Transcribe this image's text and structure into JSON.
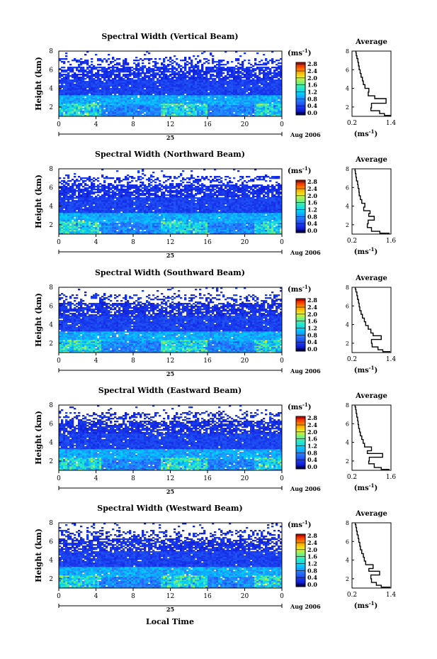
{
  "date_label": "Aug 2006",
  "day_label": "25",
  "xlabel": "Local Time",
  "heatmap_ylabel": "Height (km)",
  "unit_label": "(ms",
  "unit_exp": "-1",
  "avg_title": "Average",
  "chart_data": [
    {
      "type": "heatmap",
      "title": "Spectral Width (Vertical Beam)",
      "x_ticks": [
        "0",
        "4",
        "8",
        "12",
        "16",
        "20",
        "0"
      ],
      "y_ticks": [
        "2",
        "4",
        "6",
        "8"
      ],
      "colorbar_ticks": [
        "0.0",
        "0.4",
        "0.8",
        "1.2",
        "1.6",
        "2.0",
        "2.4",
        "2.8"
      ],
      "colorbar_range": [
        0,
        2.8
      ],
      "xlim": [
        0,
        24
      ],
      "ylim": [
        1,
        8
      ],
      "avg_profile": {
        "xlim": [
          0.2,
          1.4
        ],
        "x_ticks": [
          "0.2",
          "1.4"
        ],
        "y_ticks": [
          "2",
          "4",
          "6",
          "8"
        ],
        "ylim": [
          1,
          8
        ],
        "x": [
          1.4,
          1.2,
          1.05,
          0.78,
          0.8,
          1.25,
          0.9,
          0.7,
          0.72,
          0.6,
          0.55,
          0.52,
          0.48,
          0.45,
          0.42,
          0.4,
          0.38,
          0.35,
          0.33,
          0.32
        ],
        "y": [
          1.1,
          1.3,
          1.6,
          1.9,
          2.4,
          2.9,
          3.2,
          3.6,
          4.0,
          4.4,
          4.8,
          5.2,
          5.6,
          6.0,
          6.4,
          6.8,
          7.2,
          7.5,
          7.8,
          8.0
        ]
      }
    },
    {
      "type": "heatmap",
      "title": "Spectral Width (Northward Beam)",
      "x_ticks": [
        "0",
        "4",
        "8",
        "12",
        "16",
        "20",
        "0"
      ],
      "y_ticks": [
        "2",
        "4",
        "6",
        "8"
      ],
      "colorbar_ticks": [
        "0.0",
        "0.4",
        "0.8",
        "1.2",
        "1.6",
        "2.0",
        "2.4",
        "2.8"
      ],
      "colorbar_range": [
        0,
        2.8
      ],
      "xlim": [
        0,
        24
      ],
      "ylim": [
        1,
        8
      ],
      "avg_profile": {
        "xlim": [
          0.2,
          1.6
        ],
        "x_ticks": [
          "0.2",
          "1.6"
        ],
        "y_ticks": [
          "2",
          "4",
          "6",
          "8"
        ],
        "ylim": [
          1,
          8
        ],
        "x": [
          1.55,
          1.2,
          0.9,
          0.75,
          0.78,
          1.0,
          0.8,
          0.85,
          0.62,
          0.66,
          0.55,
          0.5,
          0.46,
          0.45,
          0.42,
          0.4,
          0.36,
          0.34,
          0.32,
          0.31
        ],
        "y": [
          1.1,
          1.3,
          1.7,
          2.1,
          2.5,
          2.9,
          3.2,
          3.5,
          3.9,
          4.3,
          4.7,
          5.1,
          5.5,
          5.9,
          6.3,
          6.7,
          7.1,
          7.5,
          7.8,
          8.0
        ]
      }
    },
    {
      "type": "heatmap",
      "title": "Spectral Width (Southward Beam)",
      "x_ticks": [
        "0",
        "4",
        "8",
        "12",
        "16",
        "20",
        "0"
      ],
      "y_ticks": [
        "2",
        "4",
        "6",
        "8"
      ],
      "colorbar_ticks": [
        "0.0",
        "0.4",
        "0.8",
        "1.2",
        "1.6",
        "2.0",
        "2.4",
        "2.8"
      ],
      "colorbar_range": [
        0,
        2.8
      ],
      "xlim": [
        0,
        24
      ],
      "ylim": [
        1,
        8
      ],
      "avg_profile": {
        "xlim": [
          0.2,
          1.4
        ],
        "x_ticks": [
          "0.2",
          "1.4"
        ],
        "y_ticks": [
          "2",
          "4",
          "6",
          "8"
        ],
        "ylim": [
          1,
          8
        ],
        "x": [
          1.38,
          1.15,
          1.0,
          0.82,
          0.8,
          1.1,
          0.85,
          0.78,
          0.7,
          0.62,
          0.58,
          0.52,
          0.48,
          0.44,
          0.42,
          0.4,
          0.37,
          0.35,
          0.32,
          0.3
        ],
        "y": [
          1.1,
          1.3,
          1.6,
          2.0,
          2.4,
          2.8,
          3.1,
          3.5,
          3.9,
          4.3,
          4.7,
          5.1,
          5.5,
          5.9,
          6.3,
          6.7,
          7.1,
          7.5,
          7.8,
          8.0
        ]
      }
    },
    {
      "type": "heatmap",
      "title": "Spectral Width (Eastward Beam)",
      "x_ticks": [
        "0",
        "4",
        "8",
        "12",
        "16",
        "20",
        "0"
      ],
      "y_ticks": [
        "2",
        "4",
        "6",
        "8"
      ],
      "colorbar_ticks": [
        "0.0",
        "0.4",
        "0.8",
        "1.2",
        "1.6",
        "2.0",
        "2.4",
        "2.8"
      ],
      "colorbar_range": [
        0,
        2.8
      ],
      "xlim": [
        0,
        24
      ],
      "ylim": [
        1,
        8
      ],
      "avg_profile": {
        "xlim": [
          0.2,
          1.6
        ],
        "x_ticks": [
          "0.2",
          "1.6"
        ],
        "y_ticks": [
          "2",
          "4",
          "6",
          "8"
        ],
        "ylim": [
          1,
          8
        ],
        "x": [
          1.55,
          1.25,
          1.0,
          0.8,
          0.82,
          1.3,
          0.75,
          0.9,
          0.65,
          0.6,
          0.55,
          0.5,
          0.47,
          0.44,
          0.42,
          0.4,
          0.37,
          0.35,
          0.33,
          0.31
        ],
        "y": [
          1.1,
          1.3,
          1.7,
          2.0,
          2.4,
          2.8,
          3.1,
          3.5,
          3.9,
          4.3,
          4.7,
          5.1,
          5.5,
          5.9,
          6.3,
          6.7,
          7.1,
          7.5,
          7.8,
          8.0
        ]
      }
    },
    {
      "type": "heatmap",
      "title": "Spectral Width (Westward Beam)",
      "x_ticks": [
        "0",
        "4",
        "8",
        "12",
        "16",
        "20",
        "0"
      ],
      "y_ticks": [
        "2",
        "4",
        "6",
        "8"
      ],
      "colorbar_ticks": [
        "0.0",
        "0.4",
        "0.8",
        "1.2",
        "1.6",
        "2.0",
        "2.4",
        "2.8"
      ],
      "colorbar_range": [
        0,
        2.8
      ],
      "xlim": [
        0,
        24
      ],
      "ylim": [
        1,
        8
      ],
      "avg_profile": {
        "xlim": [
          0.2,
          1.4
        ],
        "x_ticks": [
          "0.2",
          "1.4"
        ],
        "y_ticks": [
          "2",
          "4",
          "6",
          "8"
        ],
        "ylim": [
          1,
          8
        ],
        "x": [
          1.38,
          1.1,
          0.95,
          0.8,
          0.78,
          1.05,
          0.72,
          0.85,
          0.62,
          0.58,
          0.55,
          0.5,
          0.46,
          0.44,
          0.41,
          0.39,
          0.36,
          0.34,
          0.32,
          0.3
        ],
        "y": [
          1.1,
          1.3,
          1.6,
          2.0,
          2.4,
          2.8,
          3.1,
          3.5,
          3.9,
          4.3,
          4.7,
          5.1,
          5.5,
          5.9,
          6.3,
          6.7,
          7.1,
          7.5,
          7.8,
          8.0
        ]
      }
    }
  ]
}
